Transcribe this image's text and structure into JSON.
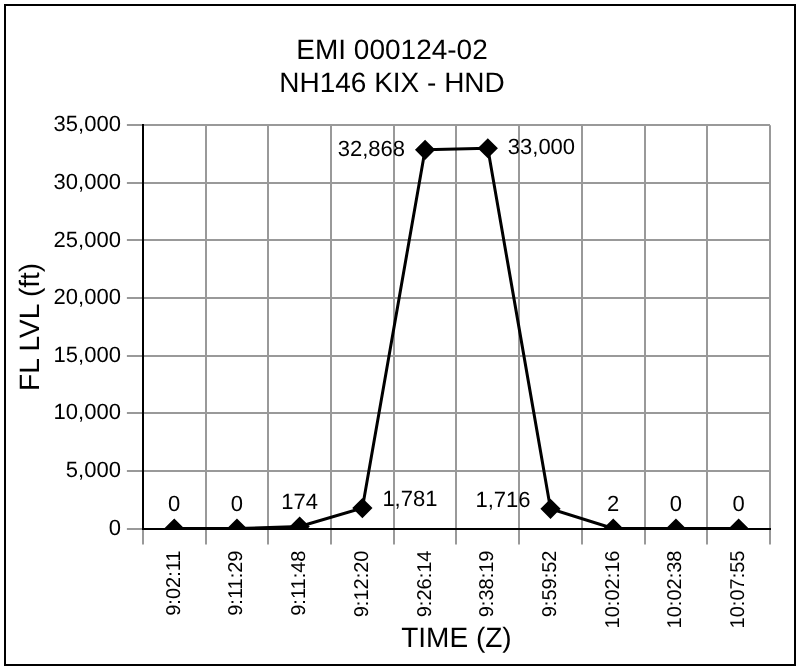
{
  "chart_data": {
    "type": "line",
    "title": [
      "EMI 000124-02",
      "NH146 KIX - HND"
    ],
    "xlabel": "TIME (Z)",
    "ylabel": "FL LVL (ft)",
    "categories": [
      "9:02:11",
      "9:11:29",
      "9:11:48",
      "9:12:20",
      "9:26:14",
      "9:38:19",
      "9:59:52",
      "10:02:16",
      "10:02:38",
      "10:07:55"
    ],
    "series": [
      {
        "color": "#000000",
        "values": [
          0,
          0,
          174,
          1781,
          32868,
          33000,
          1716,
          2,
          0,
          0
        ],
        "value_labels": [
          "0",
          "0",
          "174",
          "1,781",
          "32,868",
          "33,000",
          "1,716",
          "2",
          "0",
          "0"
        ]
      }
    ],
    "ylim": [
      0,
      35000
    ],
    "yticks": [
      {
        "value": 0,
        "label": "0"
      },
      {
        "value": 5000,
        "label": "5,000"
      },
      {
        "value": 10000,
        "label": "10,000"
      },
      {
        "value": 15000,
        "label": "15,000"
      },
      {
        "value": 20000,
        "label": "20,000"
      },
      {
        "value": 25000,
        "label": "25,000"
      },
      {
        "value": 30000,
        "label": "30,000"
      },
      {
        "value": 35000,
        "label": "35,000"
      }
    ],
    "grid": true,
    "legend": false,
    "marker": "diamond",
    "line_style": "solid"
  }
}
